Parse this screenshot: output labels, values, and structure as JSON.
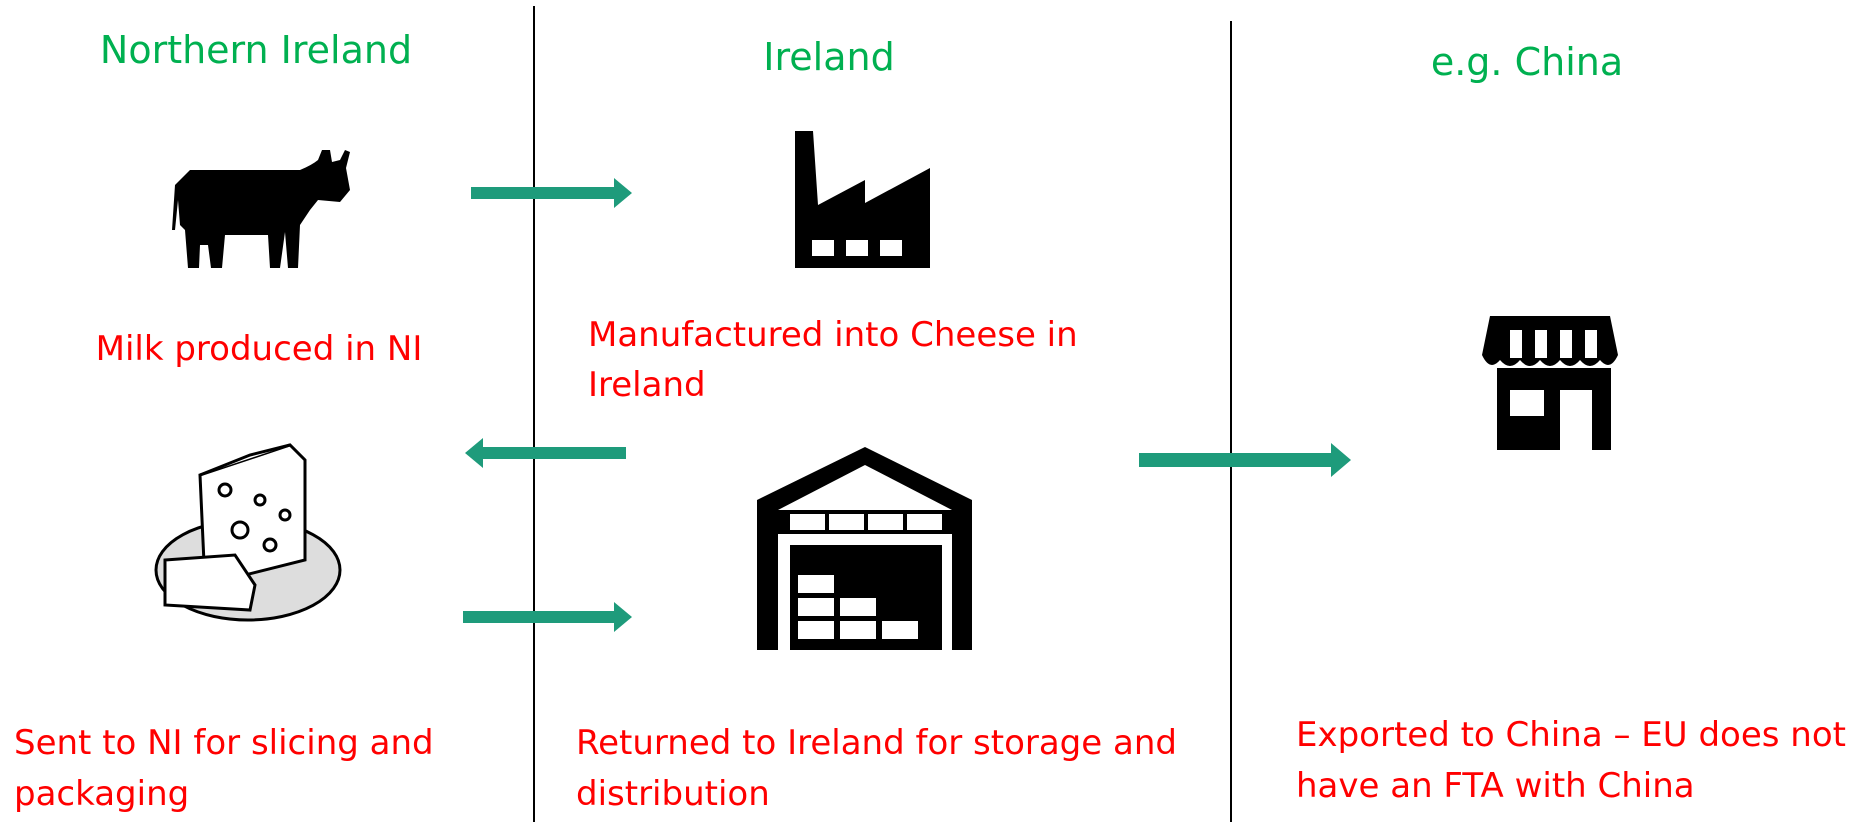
{
  "regions": [
    "Northern Ireland",
    "Ireland",
    "e.g. China"
  ],
  "steps": [
    {
      "lines": [
        "Milk produced in NI"
      ]
    },
    {
      "lines": [
        "Manufactured into Cheese in",
        "Ireland"
      ]
    },
    {
      "lines": [
        "Sent to NI for slicing and",
        "packaging"
      ]
    },
    {
      "lines": [
        "Returned to Ireland for storage and",
        "distribution"
      ]
    },
    {
      "lines": [
        "Exported to China – EU does not",
        "have an FTA with China"
      ]
    }
  ]
}
